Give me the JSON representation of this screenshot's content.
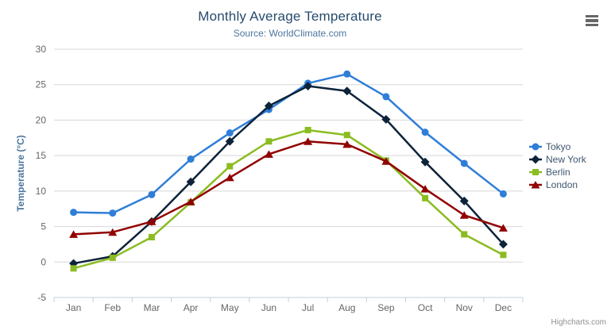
{
  "chart": {
    "title": "Monthly Average Temperature",
    "subtitle": "Source: WorldClimate.com",
    "credit": "Highcharts.com",
    "context_menu_icon": "hamburger-icon"
  },
  "colors": {
    "title": "#274b6d",
    "subtitle": "#4d759e",
    "axis_title": "#4d759e",
    "tick_label": "#666666",
    "gridline": "#d8d8d8",
    "axis_line": "#c0d0e0",
    "legend_text": "#3e576f",
    "credit_text": "#909090",
    "hamburger": "#666666",
    "background": "#ffffff"
  },
  "chart_data": {
    "type": "line",
    "title": "Monthly Average Temperature",
    "subtitle": "Source: WorldClimate.com",
    "xlabel": "",
    "ylabel": "Temperature (°C)",
    "categories": [
      "Jan",
      "Feb",
      "Mar",
      "Apr",
      "May",
      "Jun",
      "Jul",
      "Aug",
      "Sep",
      "Oct",
      "Nov",
      "Dec"
    ],
    "series": [
      {
        "name": "Tokyo",
        "color": "#2f7ed8",
        "marker": "circle",
        "values": [
          7.0,
          6.9,
          9.5,
          14.5,
          18.2,
          21.5,
          25.2,
          26.5,
          23.3,
          18.3,
          13.9,
          9.6
        ]
      },
      {
        "name": "New York",
        "color": "#0d233a",
        "marker": "diamond",
        "values": [
          -0.2,
          0.8,
          5.7,
          11.3,
          17.0,
          22.0,
          24.8,
          24.1,
          20.1,
          14.1,
          8.6,
          2.5
        ]
      },
      {
        "name": "Berlin",
        "color": "#8bbc21",
        "marker": "square",
        "values": [
          -0.9,
          0.6,
          3.5,
          8.4,
          13.5,
          17.0,
          18.6,
          17.9,
          14.3,
          9.0,
          3.9,
          1.0
        ]
      },
      {
        "name": "London",
        "color": "#910000",
        "marker": "triangle",
        "values": [
          3.9,
          4.2,
          5.7,
          8.5,
          11.9,
          15.2,
          17.0,
          16.6,
          14.2,
          10.3,
          6.6,
          4.8
        ]
      }
    ],
    "ylim": [
      -5,
      30
    ],
    "y_ticks": [
      -5,
      0,
      5,
      10,
      15,
      20,
      25,
      30
    ],
    "grid": true,
    "legend_position": "right"
  }
}
